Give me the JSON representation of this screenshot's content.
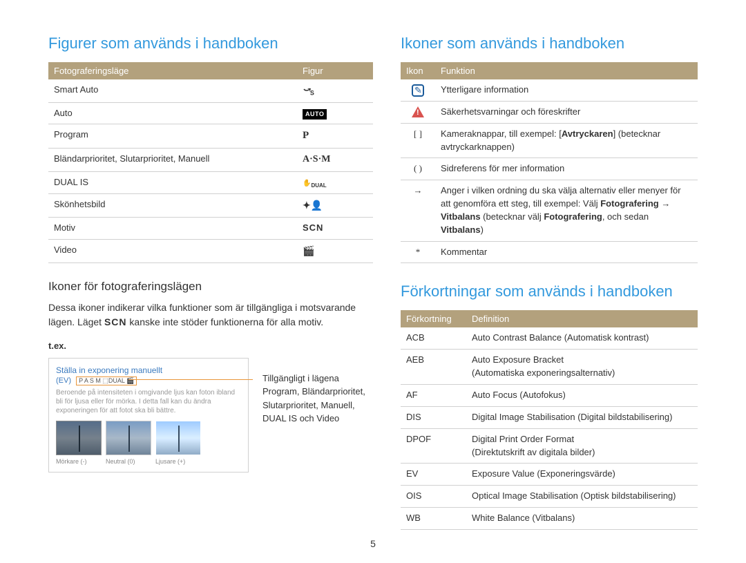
{
  "page_number": "5",
  "left": {
    "heading": "Figurer som används i handboken",
    "table1": {
      "headers": [
        "Fotograferingsläge",
        "Figur"
      ],
      "rows": [
        {
          "mode": "Smart Auto",
          "figure": "smart"
        },
        {
          "mode": "Auto",
          "figure": "auto"
        },
        {
          "mode": "Program",
          "figure": "P"
        },
        {
          "mode": "Bländarprioritet, Slutarprioritet, Manuell",
          "figure": "A·S·M"
        },
        {
          "mode": "DUAL IS",
          "figure": "dual"
        },
        {
          "mode": "Skönhetsbild",
          "figure": "beauty"
        },
        {
          "mode": "Motiv",
          "figure": "SCN"
        },
        {
          "mode": "Video",
          "figure": "video"
        }
      ]
    },
    "subheading": "Ikoner för fotograferingslägen",
    "desc_pre": "Dessa ikoner indikerar vilka funktioner som är tillgängliga i motsvarande lägen. Läget ",
    "desc_scn": "SCN",
    "desc_post": " kanske inte stöder funktionerna för alla motiv.",
    "tex": "t.ex.",
    "example": {
      "title": "Ställa in exponering manuellt",
      "ev": "(EV)",
      "badge": "P A S M ⬚DUAL 🎬",
      "desc": "Beroende på intensiteten i omgivande ljus kan foton ibland bli för ljusa eller för mörka. I detta fall kan du ändra exponeringen för att fotot ska bli bättre.",
      "labels": [
        "Mörkare (-)",
        "Neutral (0)",
        "Ljusare (+)"
      ]
    },
    "callout": "Tillgängligt i lägena Program, Bländarprioritet, Slutarprioritet, Manuell, DUAL IS och Video"
  },
  "right": {
    "heading_icons": "Ikoner som används i handboken",
    "table_icons": {
      "headers": [
        "Ikon",
        "Funktion"
      ],
      "rows": [
        {
          "icon": "info",
          "text": "Ytterligare information"
        },
        {
          "icon": "warn",
          "text": "Säkerhetsvarningar och föreskrifter"
        },
        {
          "icon": "[ ]",
          "text_pre": "Kameraknappar, till exempel: [",
          "text_bold": "Avtryckaren",
          "text_post": "] (betecknar avtryckarknappen)"
        },
        {
          "icon": "( )",
          "text": "Sidreferens för mer information"
        },
        {
          "icon": "→",
          "text_pre": "Anger i vilken ordning du ska välja alternativ eller menyer för att genomföra ett steg, till exempel: Välj ",
          "b1": "Fotografering",
          "arrow": " → ",
          "b2": "Vitbalans",
          "mid": " (betecknar välj ",
          "b3": "Fotografering",
          "mid2": ", och sedan ",
          "b4": "Vitbalans",
          "end": ")"
        },
        {
          "icon": "*",
          "text": "Kommentar"
        }
      ]
    },
    "heading_abbr": "Förkortningar som används i handboken",
    "table_abbr": {
      "headers": [
        "Förkortning",
        "Definition"
      ],
      "rows": [
        {
          "abbr": "ACB",
          "def": "Auto Contrast Balance (Automatisk kontrast)"
        },
        {
          "abbr": "AEB",
          "def": "Auto Exposure Bracket\n(Automatiska exponeringsalternativ)"
        },
        {
          "abbr": "AF",
          "def": "Auto Focus (Autofokus)"
        },
        {
          "abbr": "DIS",
          "def": "Digital Image Stabilisation (Digital bildstabilisering)"
        },
        {
          "abbr": "DPOF",
          "def": "Digital Print Order Format\n(Direktutskrift av digitala bilder)"
        },
        {
          "abbr": "EV",
          "def": "Exposure Value (Exponeringsvärde)"
        },
        {
          "abbr": "OIS",
          "def": "Optical Image Stabilisation (Optisk bildstabilisering)"
        },
        {
          "abbr": "WB",
          "def": "White Balance (Vitbalans)"
        }
      ]
    }
  },
  "colors": {
    "heading": "#3399dd",
    "header_bg": "#b3a17d",
    "header_fg": "#ffffff",
    "border": "#d0d0d0",
    "callout_line": "#e8953a"
  }
}
